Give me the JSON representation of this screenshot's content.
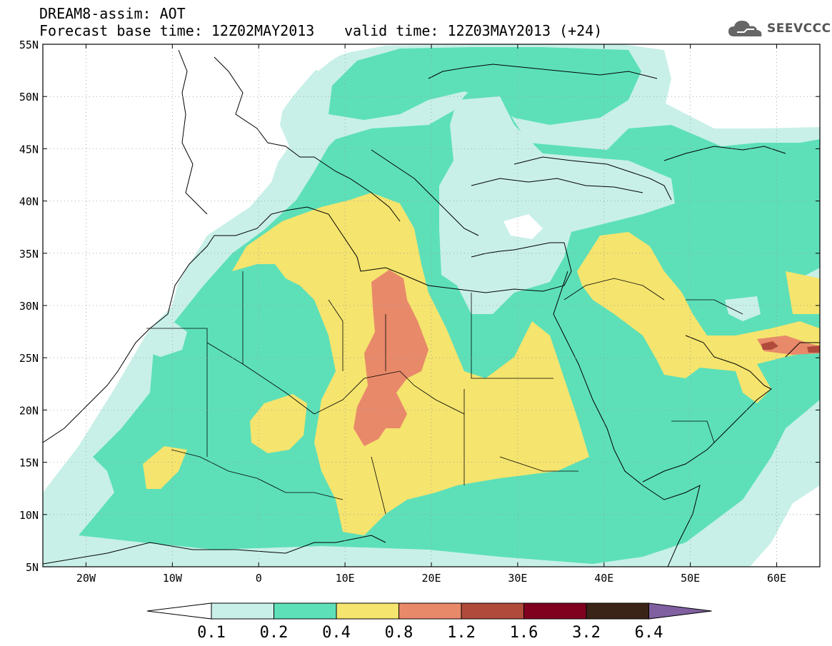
{
  "header": {
    "line1": "DREAM8-assim: AOT",
    "forecast": "Forecast base time: 12Z02MAY2013",
    "valid": "valid time: 12Z03MAY2013 (+24)"
  },
  "logo": {
    "text": "SEEVCCC",
    "icon": "cloud-icon"
  },
  "map": {
    "lon_range": [
      -25,
      65
    ],
    "lat_range": [
      5,
      55
    ],
    "lat_labels": [
      "55N",
      "50N",
      "45N",
      "40N",
      "35N",
      "30N",
      "25N",
      "20N",
      "15N",
      "10N",
      "5N"
    ],
    "lon_labels": [
      "20W",
      "10W",
      "0",
      "10E",
      "20E",
      "30E",
      "40E",
      "50E",
      "60E"
    ],
    "grid": "dotted"
  },
  "colorbar": {
    "labels": [
      "0.1",
      "0.2",
      "0.4",
      "0.8",
      "1.2",
      "1.6",
      "3.2",
      "6.4"
    ],
    "colors": [
      "#ffffff",
      "#c8f0e8",
      "#5de0b8",
      "#f5e46e",
      "#e8896a",
      "#b04a3a",
      "#800020",
      "#3a2418",
      "#8060a0"
    ]
  }
}
